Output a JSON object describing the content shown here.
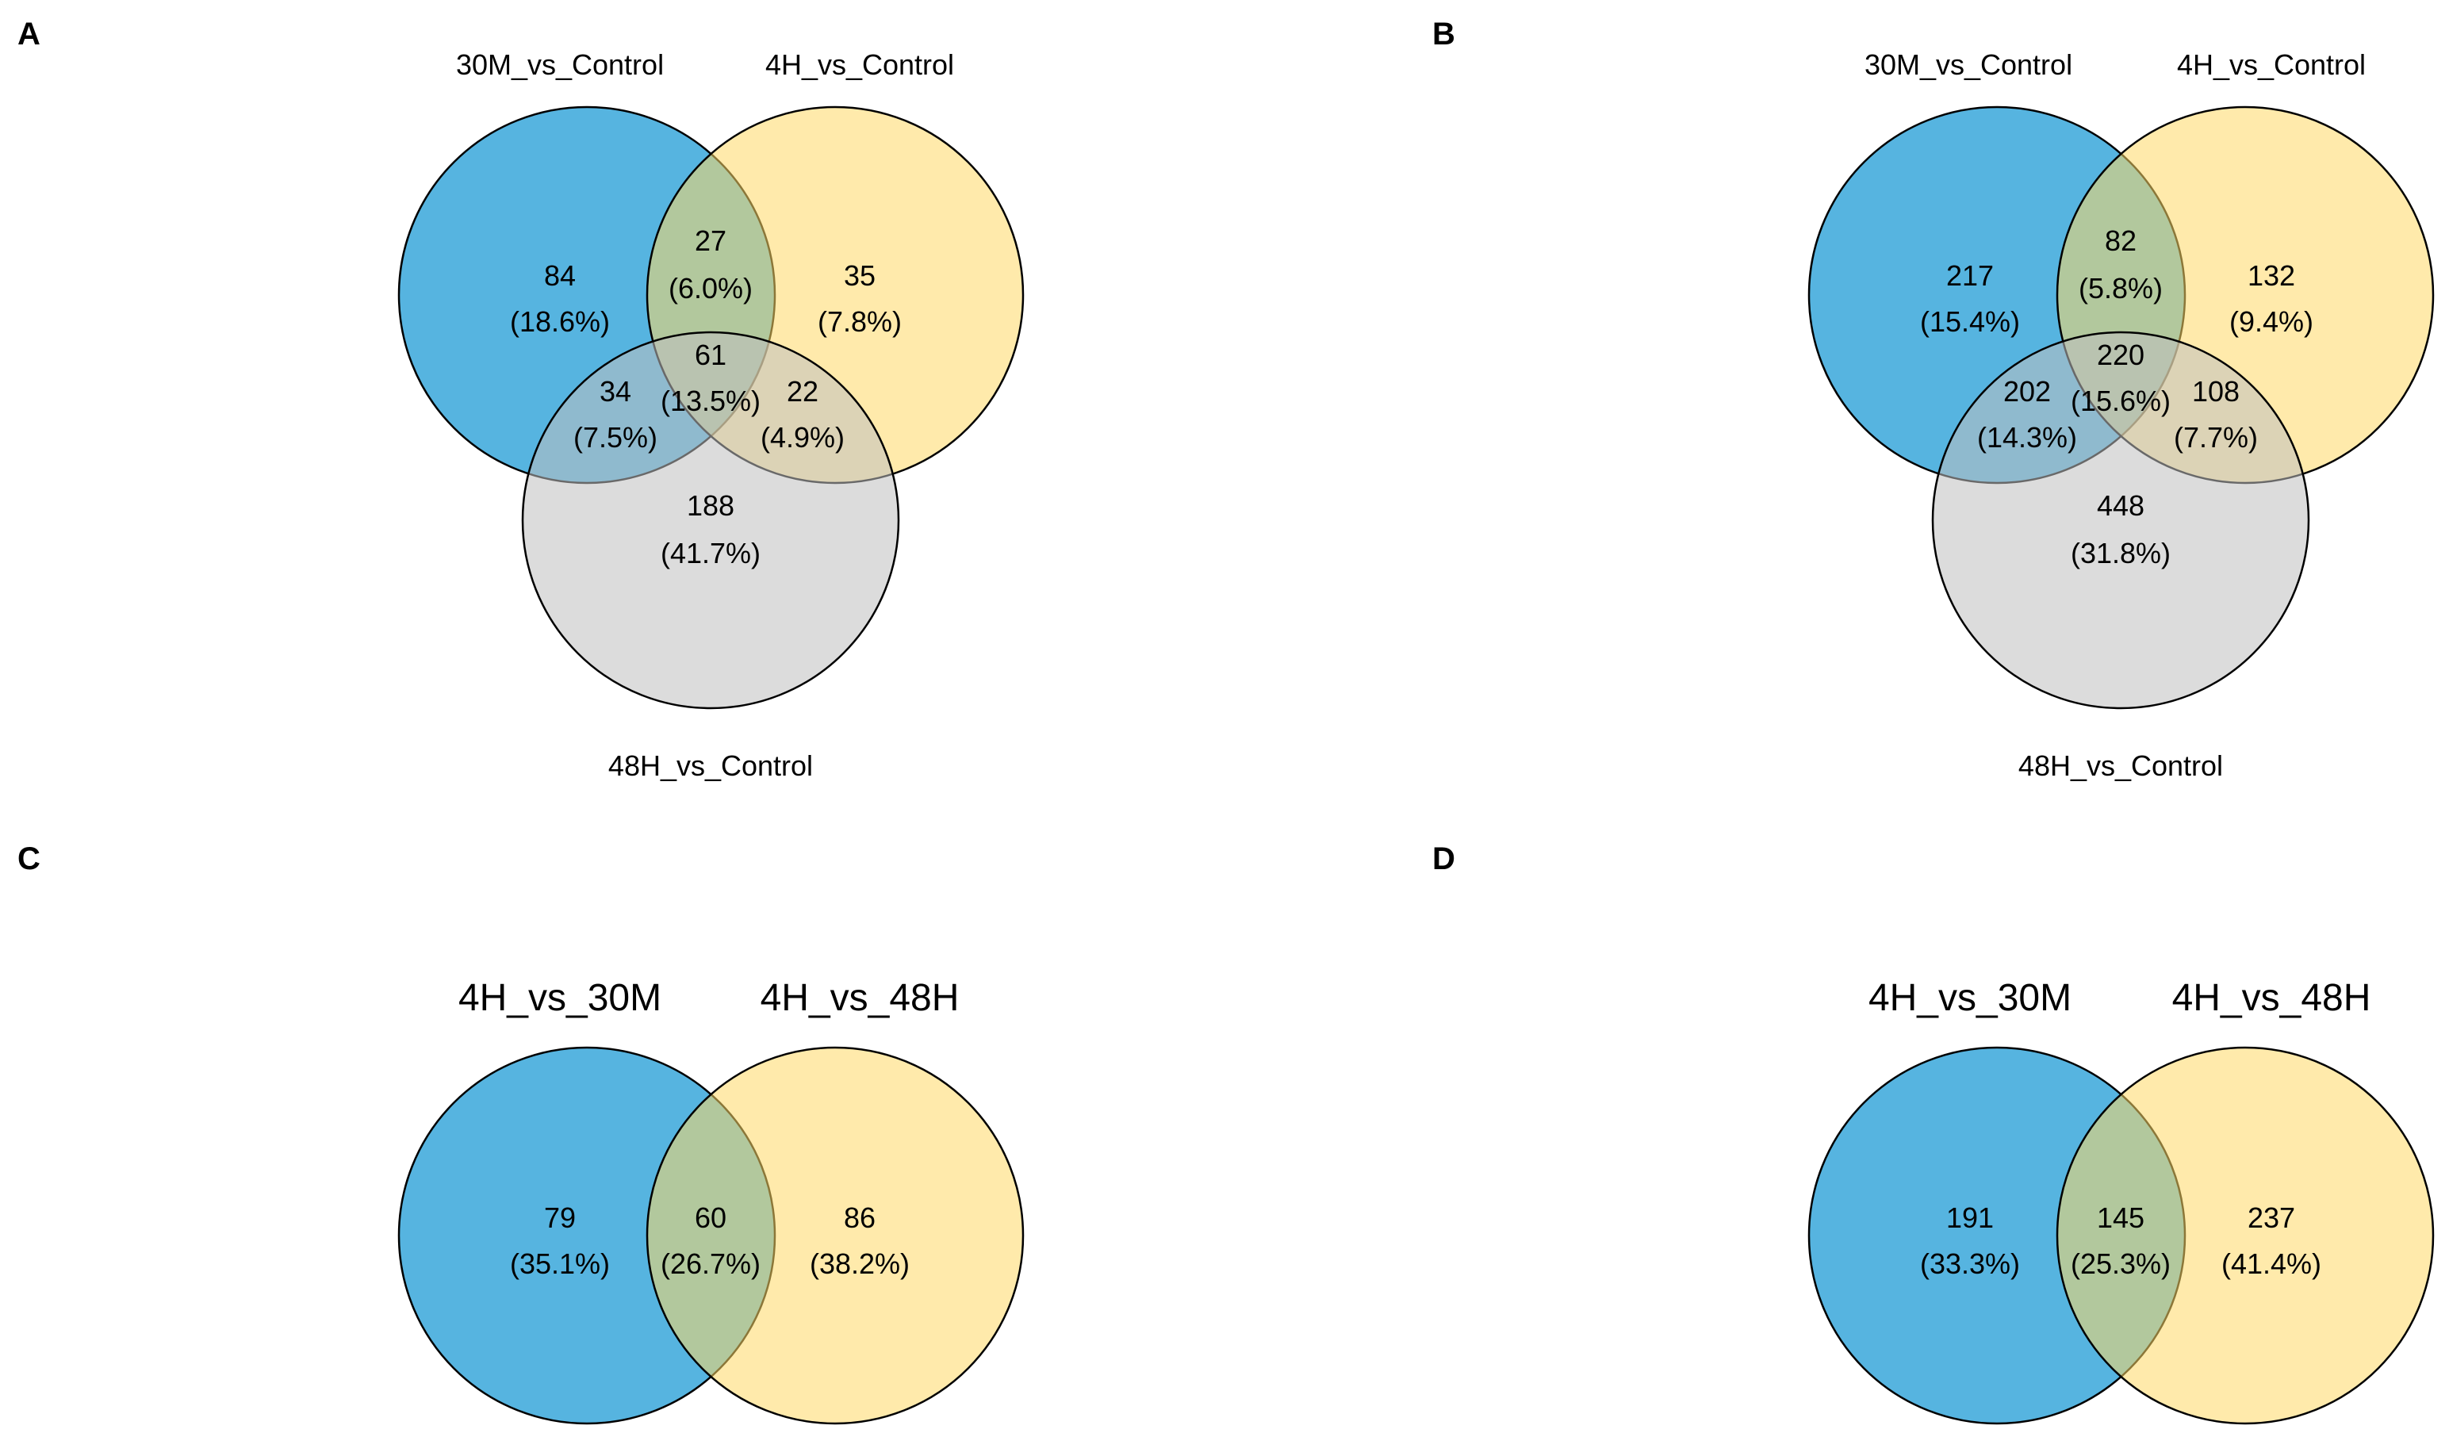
{
  "colors": {
    "set1": "#56b4e0",
    "set2": "#ffd966",
    "set3": "#bfbfbf",
    "outline": "#000000"
  },
  "panels": {
    "A": {
      "letter": "A",
      "sets": [
        "30M_vs_Control",
        "4H_vs_Control",
        "48H_vs_Control"
      ],
      "regions": {
        "only1": {
          "count": "84",
          "percent": "(18.6%)"
        },
        "only2": {
          "count": "35",
          "percent": "(7.8%)"
        },
        "only3": {
          "count": "188",
          "percent": "(41.7%)"
        },
        "s12": {
          "count": "27",
          "percent": "(6.0%)"
        },
        "s13": {
          "count": "34",
          "percent": "(7.5%)"
        },
        "s23": {
          "count": "22",
          "percent": "(4.9%)"
        },
        "s123": {
          "count": "61",
          "percent": "(13.5%)"
        }
      }
    },
    "B": {
      "letter": "B",
      "sets": [
        "30M_vs_Control",
        "4H_vs_Control",
        "48H_vs_Control"
      ],
      "regions": {
        "only1": {
          "count": "217",
          "percent": "(15.4%)"
        },
        "only2": {
          "count": "132",
          "percent": "(9.4%)"
        },
        "only3": {
          "count": "448",
          "percent": "(31.8%)"
        },
        "s12": {
          "count": "82",
          "percent": "(5.8%)"
        },
        "s13": {
          "count": "202",
          "percent": "(14.3%)"
        },
        "s23": {
          "count": "108",
          "percent": "(7.7%)"
        },
        "s123": {
          "count": "220",
          "percent": "(15.6%)"
        }
      }
    },
    "C": {
      "letter": "C",
      "sets": [
        "4H_vs_30M",
        "4H_vs_48H"
      ],
      "regions": {
        "only1": {
          "count": "79",
          "percent": "(35.1%)"
        },
        "s12": {
          "count": "60",
          "percent": "(26.7%)"
        },
        "only2": {
          "count": "86",
          "percent": "(38.2%)"
        }
      }
    },
    "D": {
      "letter": "D",
      "sets": [
        "4H_vs_30M",
        "4H_vs_48H"
      ],
      "regions": {
        "only1": {
          "count": "191",
          "percent": "(33.3%)"
        },
        "s12": {
          "count": "145",
          "percent": "(25.3%)"
        },
        "only2": {
          "count": "237",
          "percent": "(41.4%)"
        }
      }
    }
  }
}
